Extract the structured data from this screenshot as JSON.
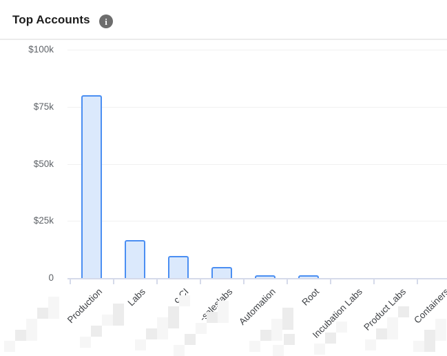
{
  "header": {
    "title": "Top Accounts",
    "info_icon_glyph": "i"
  },
  "chart_data": {
    "type": "bar",
    "title": "Top Accounts",
    "categories": [
      "Production",
      "Labs",
      "c CI",
      "-saleslabs",
      "Automation",
      "Root",
      "Incubation Labs",
      "Product Labs",
      "Containers"
    ],
    "values": [
      80000,
      16500,
      9700,
      4800,
      1200,
      1200,
      0,
      0,
      0
    ],
    "y_ticks": [
      {
        "label": "$100k",
        "value": 100000
      },
      {
        "label": "$75k",
        "value": 75000
      },
      {
        "label": "$50k",
        "value": 50000
      },
      {
        "label": "$25k",
        "value": 25000
      },
      {
        "label": "0",
        "value": 0
      }
    ],
    "ylim": [
      0,
      100000
    ],
    "xlabel": "",
    "ylabel": "",
    "grid": true,
    "legend": false,
    "note": "leading portions of several account names are redacted with a light-gray mosaic blur"
  },
  "colors": {
    "background": "#ffffff",
    "title": "#1c1c1c",
    "divider": "#ebebeb",
    "info_icon_bg": "#6d6d6d",
    "bar_fill": "#dbe9fc",
    "bar_stroke": "#4a8ef2",
    "axis": "#d5daea",
    "gridline": "#f1f1f1",
    "y_label": "#5f6368",
    "x_label": "#3f4246",
    "mosaic_light": "#f6f6f6",
    "mosaic_dark": "#ececec"
  }
}
